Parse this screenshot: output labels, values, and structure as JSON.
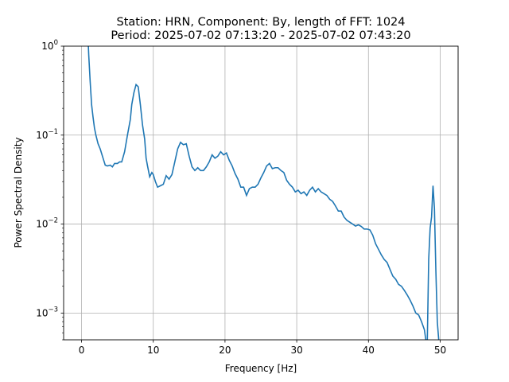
{
  "chart_data": {
    "type": "line",
    "title_line1": "Station: HRN, Component: By, length of FFT: 1024",
    "title_line2": "Period: 2025-07-02 07:13:20 - 2025-07-02 07:43:20",
    "xlabel": "Frequency [Hz]",
    "ylabel": "Power Spectral Density",
    "xlim": [
      -2.5,
      52.5
    ],
    "ylim": [
      0.0005,
      1
    ],
    "yscale": "log",
    "grid": true,
    "line_color": "#1f77b4",
    "x_ticks": [
      0,
      10,
      20,
      30,
      40,
      50
    ],
    "x_tick_labels": [
      "0",
      "10",
      "20",
      "30",
      "40",
      "50"
    ],
    "y_ticks": [
      0.001,
      0.01,
      0.1,
      1
    ],
    "y_tick_labels": [
      {
        "base": "10",
        "exp": "−3"
      },
      {
        "base": "10",
        "exp": "−2"
      },
      {
        "base": "10",
        "exp": "−1"
      },
      {
        "base": "10",
        "exp": "0"
      }
    ],
    "series": [
      {
        "x": [
          0.95,
          1.0,
          1.2,
          1.4,
          1.6,
          1.8,
          2.0,
          2.3,
          2.6,
          3.0,
          3.3,
          3.6,
          4.0,
          4.3,
          4.6,
          5.0,
          5.3,
          5.6,
          6.0,
          6.4,
          6.8,
          7.0,
          7.3,
          7.6,
          7.9,
          8.2,
          8.5,
          8.8,
          9.0,
          9.2,
          9.5,
          9.8,
          10.0,
          10.3,
          10.6,
          11.0,
          11.4,
          11.8,
          12.2,
          12.6,
          13.0,
          13.4,
          13.8,
          14.2,
          14.6,
          15.0,
          15.4,
          15.8,
          16.2,
          16.6,
          17.0,
          17.4,
          17.8,
          18.2,
          18.6,
          19.0,
          19.4,
          19.8,
          20.2,
          20.6,
          21.0,
          21.4,
          21.8,
          22.2,
          22.6,
          23.0,
          23.4,
          23.8,
          24.2,
          24.6,
          25.0,
          25.4,
          25.8,
          26.2,
          26.6,
          27.0,
          27.4,
          27.8,
          28.2,
          28.6,
          29.0,
          29.4,
          29.8,
          30.2,
          30.6,
          31.0,
          31.4,
          31.8,
          32.2,
          32.6,
          33.0,
          33.4,
          33.8,
          34.2,
          34.6,
          35.0,
          35.4,
          35.8,
          36.2,
          36.6,
          37.0,
          37.4,
          37.8,
          38.2,
          38.6,
          39.0,
          39.4,
          39.8,
          40.2,
          40.6,
          41.0,
          41.4,
          41.8,
          42.2,
          42.6,
          43.0,
          43.4,
          43.8,
          44.2,
          44.6,
          45.0,
          45.4,
          45.8,
          46.2,
          46.6,
          47.0,
          47.4,
          47.8,
          48.0,
          48.2,
          48.4,
          48.6,
          48.8,
          49.0,
          49.2,
          49.4,
          49.6,
          49.8,
          49.9
        ],
        "y": [
          1.0,
          0.8,
          0.4,
          0.22,
          0.16,
          0.12,
          0.1,
          0.08,
          0.07,
          0.055,
          0.046,
          0.045,
          0.046,
          0.044,
          0.048,
          0.048,
          0.05,
          0.05,
          0.065,
          0.1,
          0.15,
          0.22,
          0.3,
          0.37,
          0.35,
          0.22,
          0.13,
          0.09,
          0.055,
          0.045,
          0.034,
          0.038,
          0.036,
          0.03,
          0.026,
          0.027,
          0.028,
          0.035,
          0.032,
          0.036,
          0.05,
          0.07,
          0.083,
          0.078,
          0.08,
          0.058,
          0.044,
          0.04,
          0.043,
          0.04,
          0.04,
          0.044,
          0.05,
          0.06,
          0.055,
          0.058,
          0.065,
          0.06,
          0.063,
          0.052,
          0.045,
          0.037,
          0.032,
          0.026,
          0.026,
          0.021,
          0.025,
          0.026,
          0.026,
          0.028,
          0.033,
          0.038,
          0.045,
          0.048,
          0.042,
          0.043,
          0.043,
          0.04,
          0.038,
          0.031,
          0.028,
          0.026,
          0.023,
          0.024,
          0.022,
          0.023,
          0.021,
          0.024,
          0.026,
          0.023,
          0.025,
          0.023,
          0.022,
          0.021,
          0.019,
          0.018,
          0.016,
          0.014,
          0.014,
          0.012,
          0.011,
          0.0105,
          0.01,
          0.0095,
          0.0098,
          0.0094,
          0.0088,
          0.0088,
          0.0086,
          0.0075,
          0.006,
          0.0052,
          0.0045,
          0.004,
          0.0037,
          0.0031,
          0.0026,
          0.0024,
          0.0021,
          0.002,
          0.0018,
          0.0016,
          0.0014,
          0.0012,
          0.001,
          0.00095,
          0.0008,
          0.00065,
          0.0005,
          0.00045,
          0.004,
          0.009,
          0.012,
          0.027,
          0.015,
          0.003,
          0.0008,
          0.0005,
          0.0004
        ]
      }
    ]
  }
}
